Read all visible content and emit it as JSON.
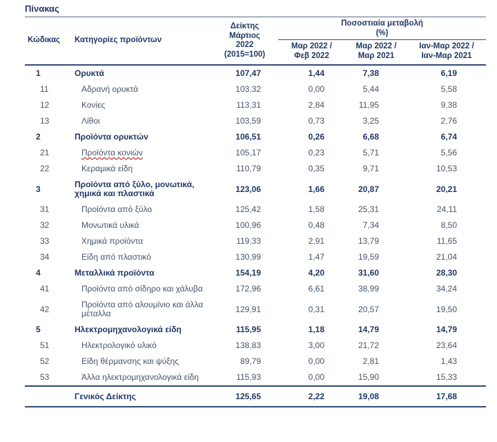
{
  "title": "Πίνακας",
  "colors": {
    "navy": "#1f3864",
    "body": "#44546a",
    "rule": "#2e4a74",
    "spellcheck_red": "#c00000"
  },
  "table": {
    "headers": {
      "code": "Κώδικας",
      "category": "Κατηγορίες προϊόντων",
      "index": "Δείκτης\nΜάρτιος\n2022\n(2015=100)",
      "pct_group": "Ποσοστιαία μεταβολή\n(%)",
      "pct_cols": [
        "Μαρ 2022 /\nΦεβ 2022",
        "Μαρ 2022 /\nΜαρ 2021",
        "Ιαν-Μαρ 2022 /\nΙαν-Μαρ 2021"
      ]
    },
    "rows": [
      {
        "code": "1",
        "category": "Ορυκτά",
        "level": "main",
        "index": "107,47",
        "mom": "1,44",
        "yoy": "7,38",
        "cum": "6,19"
      },
      {
        "code": "11",
        "category": "Αδρανή ορυκτά",
        "level": "sub",
        "index": "103,32",
        "mom": "0,00",
        "yoy": "5,44",
        "cum": "5,58"
      },
      {
        "code": "12",
        "category": "Κονίες",
        "level": "sub",
        "index": "113,31",
        "mom": "2,84",
        "yoy": "11,95",
        "cum": "9,38"
      },
      {
        "code": "13",
        "category": "Λίθοι",
        "level": "sub",
        "index": "103,59",
        "mom": "0,73",
        "yoy": "3,25",
        "cum": "2,76"
      },
      {
        "code": "2",
        "category": "Προϊόντα ορυκτών",
        "level": "main",
        "index": "106,51",
        "mom": "0,26",
        "yoy": "6,68",
        "cum": "6,74"
      },
      {
        "code": "21",
        "category": "Προϊόντα κονιών",
        "level": "sub",
        "spellcheck": true,
        "index": "105,17",
        "mom": "0,23",
        "yoy": "5,71",
        "cum": "5,56"
      },
      {
        "code": "22",
        "category": "Κεραμικά είδη",
        "level": "sub",
        "index": "110,79",
        "mom": "0,35",
        "yoy": "9,71",
        "cum": "10,53"
      },
      {
        "code": "3",
        "category": "Προϊόντα από ξύλο, μονωτικά, χημικά και πλαστικά",
        "level": "main",
        "index": "123,06",
        "mom": "1,66",
        "yoy": "20,87",
        "cum": "20,21"
      },
      {
        "code": "31",
        "category": "Προϊόντα από ξύλο",
        "level": "sub",
        "index": "125,42",
        "mom": "1,58",
        "yoy": "25,31",
        "cum": "24,11"
      },
      {
        "code": "32",
        "category": "Μονωτικά υλικά",
        "level": "sub",
        "index": "100,96",
        "mom": "0,48",
        "yoy": "7,34",
        "cum": "8,50"
      },
      {
        "code": "33",
        "category": "Χημικά προϊόντα",
        "level": "sub",
        "index": "119,33",
        "mom": "2,91",
        "yoy": "13,79",
        "cum": "11,65"
      },
      {
        "code": "34",
        "category": "Είδη από πλαστικό",
        "level": "sub",
        "index": "130,99",
        "mom": "1,47",
        "yoy": "19,59",
        "cum": "21,04"
      },
      {
        "code": "4",
        "category": "Μεταλλικά προϊόντα",
        "level": "main",
        "index": "154,19",
        "mom": "4,20",
        "yoy": "31,60",
        "cum": "28,30"
      },
      {
        "code": "41",
        "category": "Προϊόντα από σίδηρο και χάλυβα",
        "level": "sub",
        "index": "172,96",
        "mom": "6,61",
        "yoy": "38,99",
        "cum": "34,24"
      },
      {
        "code": "42",
        "category": "Προϊόντα από αλουμίνιο και άλλα μέταλλα",
        "level": "sub",
        "index": "129,91",
        "mom": "0,31",
        "yoy": "20,57",
        "cum": "19,50"
      },
      {
        "code": "5",
        "category": "Ηλεκτρομηχανολογικά είδη",
        "level": "main",
        "index": "115,95",
        "mom": "1,18",
        "yoy": "14,79",
        "cum": "14,79"
      },
      {
        "code": "51",
        "category": "Ηλεκτρολογικό υλικό",
        "level": "sub",
        "index": "138,83",
        "mom": "3,00",
        "yoy": "21,72",
        "cum": "23,64"
      },
      {
        "code": "52",
        "category": "Είδη θέρμανσης και ψύξης",
        "level": "sub",
        "index": "89,79",
        "mom": "0,00",
        "yoy": "2,81",
        "cum": "1,43"
      },
      {
        "code": "53",
        "category": "Άλλα ηλεκτρομηχανολογικά είδη",
        "level": "sub",
        "index": "115,93",
        "mom": "0,00",
        "yoy": "15,90",
        "cum": "15,33"
      }
    ],
    "footer": {
      "category": "Γενικός Δείκτης",
      "index": "125,65",
      "mom": "2,22",
      "yoy": "19,08",
      "cum": "17,68"
    }
  }
}
